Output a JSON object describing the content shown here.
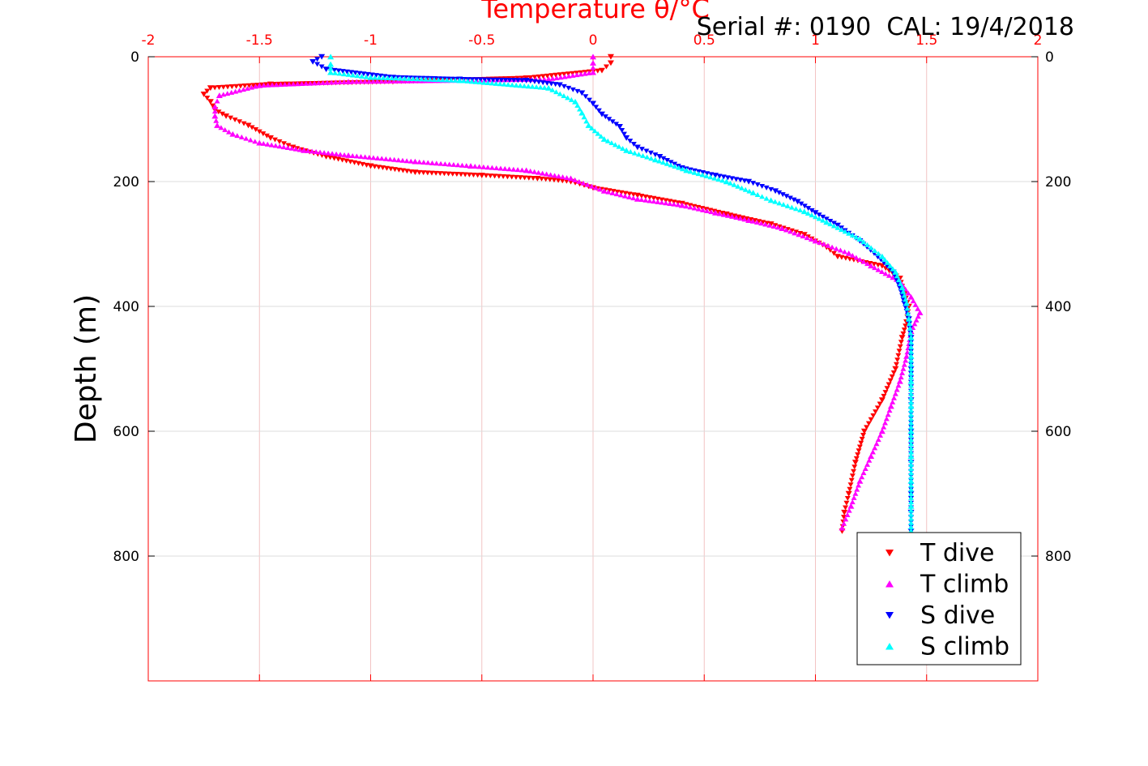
{
  "chart_data": {
    "type": "scatter",
    "title": "Temperature θ/°C",
    "annotation": "Serial #: 0190  CAL: 19/4/2018",
    "xlabel": "Temperature θ/°C",
    "ylabel": "Depth (m)",
    "xlim": [
      -2,
      2
    ],
    "ylim": [
      0,
      1000
    ],
    "y_reversed": true,
    "grid": true,
    "legend_position": "bottom-right",
    "x_ticks": [
      "-2",
      "-1.5",
      "-1",
      "-0.5",
      "0",
      "0.5",
      "1",
      "1.5",
      "2"
    ],
    "y_ticks": [
      "0",
      "200",
      "400",
      "600",
      "800"
    ],
    "series": [
      {
        "name": "T dive",
        "color": "#ff0000",
        "marker": "triangle-down",
        "points": [
          [
            0.08,
            0
          ],
          [
            0.08,
            10
          ],
          [
            0.04,
            22
          ],
          [
            -0.3,
            34
          ],
          [
            -0.9,
            40
          ],
          [
            -1.45,
            44
          ],
          [
            -1.72,
            50
          ],
          [
            -1.75,
            60
          ],
          [
            -1.72,
            72
          ],
          [
            -1.7,
            85
          ],
          [
            -1.65,
            95
          ],
          [
            -1.55,
            110
          ],
          [
            -1.45,
            130
          ],
          [
            -1.35,
            145
          ],
          [
            -1.2,
            160
          ],
          [
            -1.0,
            175
          ],
          [
            -0.8,
            185
          ],
          [
            -0.5,
            190
          ],
          [
            -0.25,
            195
          ],
          [
            -0.1,
            200
          ],
          [
            0.0,
            210
          ],
          [
            0.2,
            222
          ],
          [
            0.4,
            235
          ],
          [
            0.6,
            252
          ],
          [
            0.8,
            268
          ],
          [
            0.95,
            285
          ],
          [
            1.05,
            305
          ],
          [
            1.1,
            320
          ],
          [
            1.3,
            335
          ],
          [
            1.38,
            355
          ],
          [
            1.4,
            380
          ],
          [
            1.42,
            400
          ],
          [
            1.41,
            425
          ],
          [
            1.39,
            450
          ],
          [
            1.36,
            500
          ],
          [
            1.3,
            550
          ],
          [
            1.22,
            600
          ],
          [
            1.18,
            650
          ],
          [
            1.15,
            700
          ],
          [
            1.13,
            730
          ],
          [
            1.12,
            760
          ]
        ]
      },
      {
        "name": "T climb",
        "color": "#ff00ff",
        "marker": "triangle-up",
        "points": [
          [
            1.12,
            755
          ],
          [
            1.16,
            720
          ],
          [
            1.2,
            680
          ],
          [
            1.25,
            640
          ],
          [
            1.3,
            600
          ],
          [
            1.34,
            560
          ],
          [
            1.38,
            520
          ],
          [
            1.41,
            480
          ],
          [
            1.43,
            440
          ],
          [
            1.47,
            410
          ],
          [
            1.43,
            385
          ],
          [
            1.38,
            360
          ],
          [
            1.25,
            335
          ],
          [
            1.15,
            315
          ],
          [
            1.0,
            295
          ],
          [
            0.85,
            275
          ],
          [
            0.7,
            262
          ],
          [
            0.55,
            250
          ],
          [
            0.4,
            238
          ],
          [
            0.2,
            228
          ],
          [
            0.05,
            215
          ],
          [
            -0.1,
            195
          ],
          [
            -0.3,
            182
          ],
          [
            -0.55,
            175
          ],
          [
            -0.8,
            168
          ],
          [
            -1.1,
            158
          ],
          [
            -1.3,
            150
          ],
          [
            -1.5,
            138
          ],
          [
            -1.62,
            124
          ],
          [
            -1.69,
            110
          ],
          [
            -1.7,
            95
          ],
          [
            -1.7,
            80
          ],
          [
            -1.68,
            62
          ],
          [
            -1.5,
            46
          ],
          [
            -1.1,
            40
          ],
          [
            -0.6,
            38
          ],
          [
            -0.2,
            36
          ],
          [
            0.0,
            25
          ],
          [
            0.0,
            10
          ],
          [
            0.0,
            0
          ]
        ]
      },
      {
        "name": "S dive",
        "color": "#0000ff",
        "marker": "triangle-down",
        "points": [
          [
            -1.22,
            0
          ],
          [
            -1.26,
            8
          ],
          [
            -1.2,
            20
          ],
          [
            -0.9,
            33
          ],
          [
            -0.6,
            36
          ],
          [
            -0.3,
            38
          ],
          [
            -0.15,
            45
          ],
          [
            -0.05,
            58
          ],
          [
            0.0,
            75
          ],
          [
            0.04,
            92
          ],
          [
            0.12,
            112
          ],
          [
            0.15,
            130
          ],
          [
            0.2,
            145
          ],
          [
            0.3,
            160
          ],
          [
            0.4,
            178
          ],
          [
            0.55,
            190
          ],
          [
            0.7,
            200
          ],
          [
            0.82,
            215
          ],
          [
            0.92,
            232
          ],
          [
            1.0,
            250
          ],
          [
            1.1,
            270
          ],
          [
            1.2,
            295
          ],
          [
            1.28,
            320
          ],
          [
            1.35,
            345
          ],
          [
            1.38,
            370
          ],
          [
            1.4,
            395
          ],
          [
            1.42,
            420
          ],
          [
            1.43,
            450
          ],
          [
            1.43,
            500
          ],
          [
            1.43,
            550
          ],
          [
            1.43,
            600
          ],
          [
            1.43,
            650
          ],
          [
            1.43,
            700
          ],
          [
            1.43,
            730
          ],
          [
            1.43,
            760
          ]
        ]
      },
      {
        "name": "S climb",
        "color": "#00ffff",
        "marker": "triangle-up",
        "points": [
          [
            1.43,
            760
          ],
          [
            1.43,
            720
          ],
          [
            1.43,
            680
          ],
          [
            1.43,
            640
          ],
          [
            1.43,
            600
          ],
          [
            1.43,
            560
          ],
          [
            1.43,
            520
          ],
          [
            1.43,
            480
          ],
          [
            1.43,
            450
          ],
          [
            1.42,
            420
          ],
          [
            1.41,
            395
          ],
          [
            1.39,
            370
          ],
          [
            1.36,
            345
          ],
          [
            1.3,
            320
          ],
          [
            1.2,
            292
          ],
          [
            1.05,
            265
          ],
          [
            0.95,
            248
          ],
          [
            0.8,
            230
          ],
          [
            0.72,
            218
          ],
          [
            0.6,
            200
          ],
          [
            0.42,
            182
          ],
          [
            0.28,
            165
          ],
          [
            0.15,
            150
          ],
          [
            0.05,
            132
          ],
          [
            -0.02,
            110
          ],
          [
            -0.05,
            90
          ],
          [
            -0.08,
            72
          ],
          [
            -0.2,
            50
          ],
          [
            -0.6,
            38
          ],
          [
            -1.0,
            33
          ],
          [
            -1.18,
            25
          ],
          [
            -1.18,
            12
          ],
          [
            -1.18,
            0
          ]
        ]
      }
    ]
  }
}
